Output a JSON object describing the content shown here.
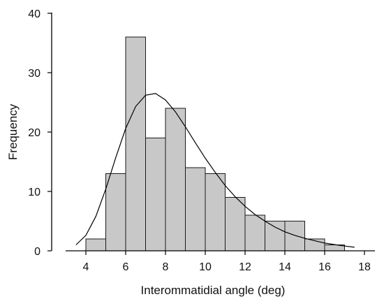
{
  "chart_data": {
    "type": "bar",
    "title": "",
    "xlabel": "Interommatidial angle (deg)",
    "ylabel": "Frequency",
    "xlim": [
      2.8,
      18.5
    ],
    "ylim": [
      0,
      40
    ],
    "xticks": [
      "4",
      "6",
      "8",
      "10",
      "12",
      "14",
      "16",
      "18"
    ],
    "yticks": [
      "0",
      "10",
      "20",
      "30",
      "40"
    ],
    "grid": false,
    "legend": "none",
    "bin_width": 1,
    "bins": [
      {
        "start": 4,
        "end": 5,
        "value": 2
      },
      {
        "start": 5,
        "end": 6,
        "value": 13
      },
      {
        "start": 6,
        "end": 7,
        "value": 36
      },
      {
        "start": 7,
        "end": 8,
        "value": 19
      },
      {
        "start": 8,
        "end": 9,
        "value": 24
      },
      {
        "start": 9,
        "end": 10,
        "value": 14
      },
      {
        "start": 10,
        "end": 11,
        "value": 13
      },
      {
        "start": 11,
        "end": 12,
        "value": 9
      },
      {
        "start": 12,
        "end": 13,
        "value": 6
      },
      {
        "start": 13,
        "end": 14,
        "value": 5
      },
      {
        "start": 14,
        "end": 15,
        "value": 5
      },
      {
        "start": 15,
        "end": 16,
        "value": 2
      },
      {
        "start": 16,
        "end": 17,
        "value": 1
      }
    ],
    "fit_curve": {
      "type": "lognormal",
      "x_range": [
        3.5,
        17.5
      ],
      "points": [
        [
          3.5,
          1.0
        ],
        [
          4.0,
          2.6
        ],
        [
          4.5,
          5.8
        ],
        [
          5.0,
          10.4
        ],
        [
          5.5,
          15.7
        ],
        [
          6.0,
          20.6
        ],
        [
          6.5,
          24.3
        ],
        [
          7.0,
          26.2
        ],
        [
          7.5,
          26.5
        ],
        [
          8.0,
          25.4
        ],
        [
          8.5,
          23.4
        ],
        [
          9.0,
          20.9
        ],
        [
          9.5,
          18.2
        ],
        [
          10.0,
          15.6
        ],
        [
          10.5,
          13.2
        ],
        [
          11.0,
          11.0
        ],
        [
          11.5,
          9.1
        ],
        [
          12.0,
          7.5
        ],
        [
          12.5,
          6.1
        ],
        [
          13.0,
          5.0
        ],
        [
          13.5,
          4.0
        ],
        [
          14.0,
          3.2
        ],
        [
          14.5,
          2.6
        ],
        [
          15.0,
          2.1
        ],
        [
          15.5,
          1.7
        ],
        [
          16.0,
          1.3
        ],
        [
          16.5,
          1.05
        ],
        [
          17.0,
          0.8
        ],
        [
          17.5,
          0.6
        ]
      ]
    },
    "colors": {
      "bar_fill": "#c8c8c8",
      "bar_stroke": "#1a1a1a",
      "curve": "#000000"
    }
  }
}
